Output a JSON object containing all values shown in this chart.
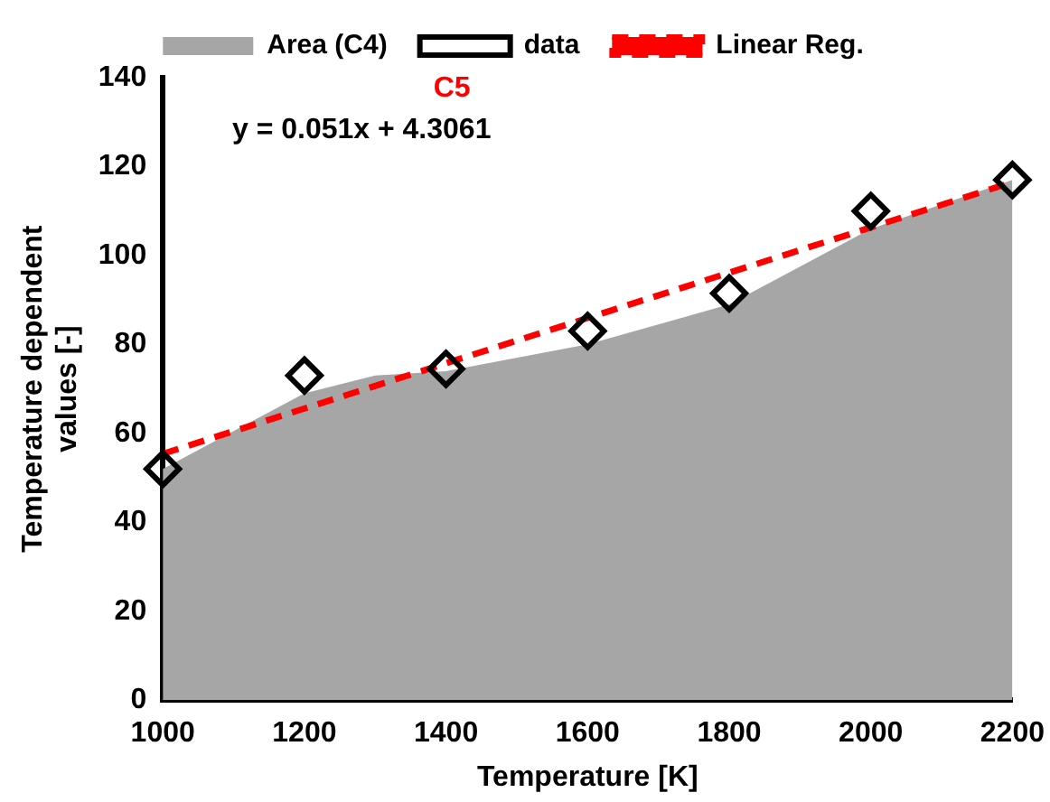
{
  "chart_data": {
    "type": "line",
    "xlabel": "Temperature [K]",
    "ylabel": "Temperature dependent values [-]",
    "xlim": [
      1000,
      2200
    ],
    "xticks": [
      1000,
      1200,
      1400,
      1600,
      1800,
      2000,
      2200
    ],
    "ylim": [
      0,
      140
    ],
    "yticks": [
      0,
      20,
      40,
      60,
      80,
      100,
      120,
      140
    ],
    "grid": false,
    "legend": "top",
    "annotations": [
      "C5",
      "y = 0.051x + 4.3061"
    ],
    "series": [
      {
        "name": "Area (C4)",
        "type": "area",
        "color": "#a6a6a6",
        "x": [
          1000,
          1200,
          1300,
          1400,
          1600,
          1800,
          2000,
          2200
        ],
        "values": [
          52,
          69,
          73,
          74,
          80,
          89,
          106,
          117
        ]
      },
      {
        "name": "data",
        "type": "scatter",
        "color": "#000000",
        "marker": "diamond",
        "x": [
          1000,
          1200,
          1400,
          1600,
          1800,
          2000,
          2200
        ],
        "values": [
          52,
          73,
          74.5,
          83,
          91.5,
          110,
          117
        ]
      },
      {
        "name": "Linear Reg.",
        "type": "line",
        "color": "#ff0000",
        "line_style": "dashed",
        "marker": "none",
        "x": [
          1000,
          2200
        ],
        "values": [
          55.4,
          116.5
        ]
      }
    ]
  }
}
